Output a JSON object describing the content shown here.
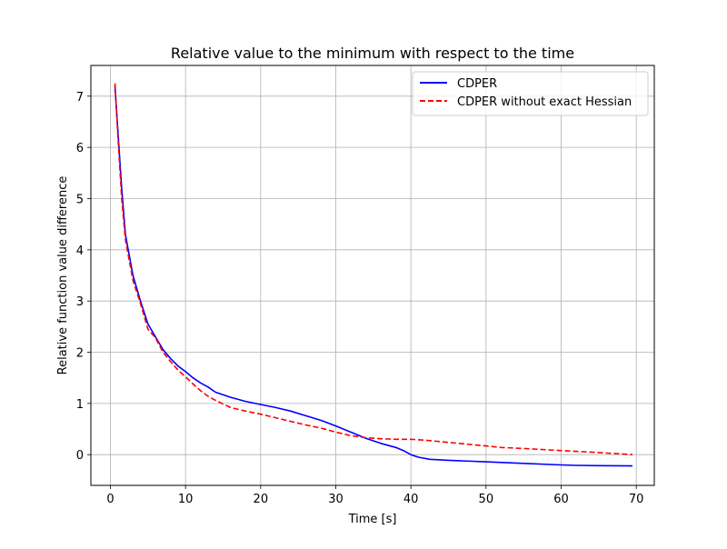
{
  "chart_data": {
    "type": "line",
    "title": "Relative value to the minimum with respect to the time",
    "xlabel": "Time [s]",
    "ylabel": "Relative function value difference",
    "xlim": [
      -2.6,
      72.4
    ],
    "ylim": [
      -0.6,
      7.6
    ],
    "xticks": [
      0,
      10,
      20,
      30,
      40,
      50,
      60,
      70
    ],
    "yticks": [
      0,
      1,
      2,
      3,
      4,
      5,
      6,
      7
    ],
    "grid": true,
    "legend_position": "top-right",
    "series": [
      {
        "name": "CDPER",
        "color": "#0000ff",
        "linestyle": "solid",
        "x": [
          0.6,
          1.0,
          1.5,
          2.0,
          3.0,
          4.0,
          5.0,
          6.0,
          7.0,
          8.0,
          9.0,
          10.0,
          11.0,
          12.0,
          13.0,
          14.0,
          16.0,
          18.0,
          20.0,
          22.0,
          24.0,
          26.0,
          28.0,
          30.0,
          32.0,
          34.0,
          36.0,
          38.0,
          39.0,
          40.0,
          41.0,
          42.5,
          45.0,
          50.0,
          55.0,
          60.0,
          62.0,
          65.0,
          69.5
        ],
        "y": [
          7.2,
          6.3,
          5.2,
          4.3,
          3.5,
          3.0,
          2.55,
          2.3,
          2.05,
          1.88,
          1.73,
          1.62,
          1.5,
          1.4,
          1.32,
          1.22,
          1.12,
          1.04,
          0.98,
          0.92,
          0.85,
          0.76,
          0.67,
          0.56,
          0.44,
          0.32,
          0.22,
          0.14,
          0.08,
          0.0,
          -0.05,
          -0.09,
          -0.11,
          -0.14,
          -0.17,
          -0.2,
          -0.21,
          -0.215,
          -0.22
        ]
      },
      {
        "name": "CDPER without exact Hessian",
        "color": "#ff0000",
        "linestyle": "dashed",
        "x": [
          0.6,
          1.0,
          1.5,
          2.0,
          3.0,
          4.0,
          5.0,
          6.0,
          7.0,
          8.0,
          9.0,
          10.0,
          11.0,
          12.0,
          13.0,
          14.0,
          16.0,
          18.0,
          20.0,
          22.0,
          24.0,
          26.0,
          28.0,
          30.0,
          32.0,
          34.0,
          36.0,
          38.0,
          40.0,
          42.0,
          45.0,
          50.0,
          52.0,
          55.0,
          60.0,
          65.0,
          69.5
        ],
        "y": [
          7.25,
          6.2,
          5.0,
          4.2,
          3.4,
          2.95,
          2.45,
          2.28,
          2.0,
          1.82,
          1.65,
          1.52,
          1.38,
          1.25,
          1.14,
          1.06,
          0.92,
          0.85,
          0.79,
          0.72,
          0.65,
          0.58,
          0.52,
          0.44,
          0.37,
          0.33,
          0.31,
          0.3,
          0.3,
          0.28,
          0.24,
          0.17,
          0.14,
          0.12,
          0.08,
          0.04,
          0.0
        ]
      }
    ]
  }
}
